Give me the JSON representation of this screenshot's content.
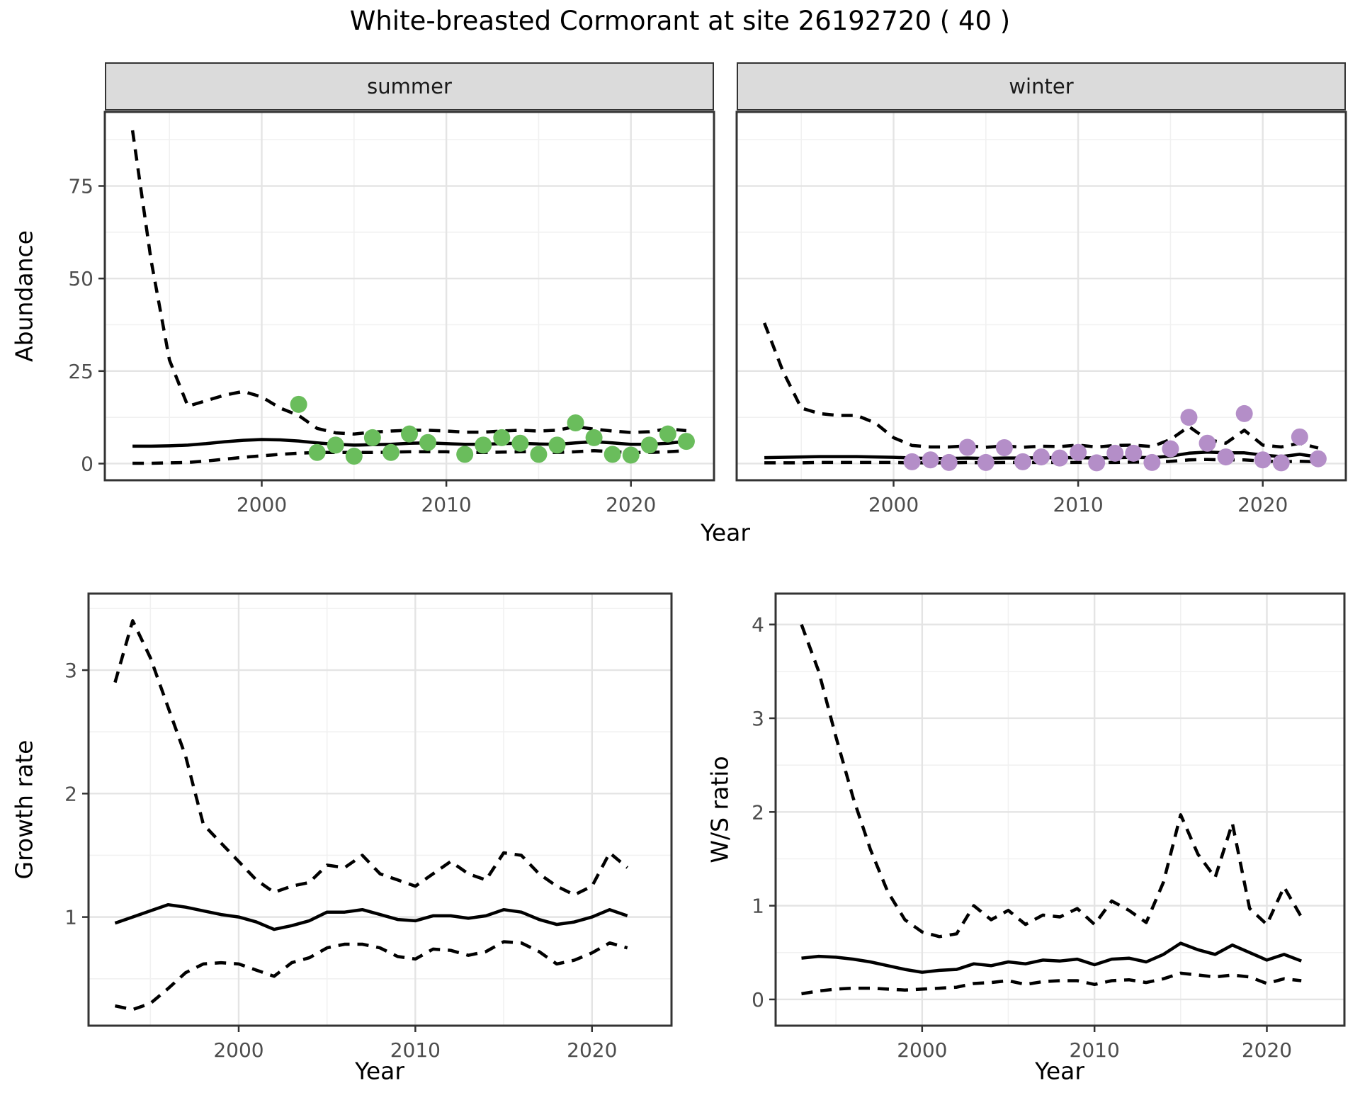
{
  "title": "White-breasted Cormorant at site 26192720 ( 40 )",
  "axes": {
    "abundance": "Abundance",
    "year": "Year",
    "growth_rate": "Growth rate",
    "ws_ratio": "W/S ratio"
  },
  "colors": {
    "summer_points": "#6abd5c",
    "winter_points": "#b48ec8",
    "line": "#000000",
    "grid_major": "#e4e4e4",
    "grid_minor": "#f1f1f1",
    "panel_border": "#333333",
    "strip_bg": "#dbdbdb",
    "tick_text": "#4d4d4d"
  },
  "chart_data": [
    {
      "id": "summer-abundance",
      "type": "line",
      "facet": "summer",
      "xlabel": "Year",
      "ylabel": "Abundance",
      "xlim": [
        1991.5,
        2024.5
      ],
      "ylim": [
        -4.5,
        95
      ],
      "xticks": {
        "major": [
          2000,
          2010,
          2020
        ],
        "minor": [
          1995,
          2005,
          2015
        ]
      },
      "yticks": {
        "major": [
          0,
          25,
          50,
          75
        ],
        "minor": [
          12.5,
          37.5,
          62.5,
          87.5
        ]
      },
      "x": [
        1993,
        1994,
        1995,
        1996,
        1997,
        1998,
        1999,
        2000,
        2001,
        2002,
        2003,
        2004,
        2005,
        2006,
        2007,
        2008,
        2009,
        2010,
        2011,
        2012,
        2013,
        2014,
        2015,
        2016,
        2017,
        2018,
        2019,
        2020,
        2021,
        2022,
        2023
      ],
      "series": [
        {
          "name": "upper_95ci",
          "style": "dashed",
          "values": [
            90,
            55,
            28,
            15.5,
            17,
            18.5,
            19.5,
            18,
            15,
            13,
            9.5,
            8.3,
            8.0,
            8.5,
            8.8,
            9.0,
            9.0,
            8.8,
            8.5,
            8.5,
            8.8,
            9.0,
            8.8,
            9.0,
            10.0,
            9.3,
            8.8,
            8.4,
            8.6,
            9.4,
            8.9
          ]
        },
        {
          "name": "mean",
          "style": "solid",
          "values": [
            4.7,
            4.7,
            4.8,
            5.0,
            5.4,
            5.9,
            6.3,
            6.5,
            6.4,
            6.1,
            5.6,
            5.2,
            5.0,
            5.1,
            5.2,
            5.5,
            5.6,
            5.4,
            5.2,
            5.2,
            5.4,
            5.5,
            5.3,
            5.2,
            5.6,
            5.9,
            5.6,
            5.2,
            5.2,
            5.5,
            6.0
          ]
        },
        {
          "name": "lower_95ci",
          "style": "dashed",
          "values": [
            0.1,
            0.1,
            0.2,
            0.3,
            0.7,
            1.2,
            1.7,
            2.1,
            2.5,
            2.8,
            3.0,
            3.0,
            3.0,
            3.0,
            3.1,
            3.2,
            3.2,
            3.2,
            3.0,
            3.0,
            3.1,
            3.2,
            3.2,
            3.0,
            3.2,
            3.5,
            3.2,
            3.0,
            3.0,
            3.2,
            3.5
          ]
        }
      ],
      "points": {
        "name": "observed-counts-summer",
        "color": "#6abd5c",
        "x": [
          2002,
          2003,
          2004,
          2005,
          2006,
          2007,
          2008,
          2009,
          2011,
          2012,
          2013,
          2014,
          2015,
          2016,
          2017,
          2018,
          2019,
          2020,
          2021,
          2022,
          2023
        ],
        "y": [
          16,
          3,
          5,
          2,
          7,
          3,
          8,
          5.7,
          2.5,
          5,
          7,
          5.5,
          2.5,
          5,
          11,
          7,
          2.5,
          2.3,
          5,
          8,
          6
        ]
      }
    },
    {
      "id": "winter-abundance",
      "type": "line",
      "facet": "winter",
      "xlabel": "Year",
      "ylabel": "Abundance",
      "xlim": [
        1991.5,
        2024.5
      ],
      "ylim": [
        -4.5,
        95
      ],
      "xticks": {
        "major": [
          2000,
          2010,
          2020
        ],
        "minor": [
          1995,
          2005,
          2015
        ]
      },
      "yticks": {
        "major": [
          0,
          25,
          50,
          75
        ],
        "minor": [
          12.5,
          37.5,
          62.5,
          87.5
        ]
      },
      "x": [
        1993,
        1994,
        1995,
        1996,
        1997,
        1998,
        1999,
        2000,
        2001,
        2002,
        2003,
        2004,
        2005,
        2006,
        2007,
        2008,
        2009,
        2010,
        2011,
        2012,
        2013,
        2014,
        2015,
        2016,
        2017,
        2018,
        2019,
        2020,
        2021,
        2022,
        2023
      ],
      "series": [
        {
          "name": "upper_95ci",
          "style": "dashed",
          "values": [
            38,
            25,
            15,
            13.5,
            13,
            13,
            11,
            7,
            4.9,
            4.5,
            4.5,
            4.8,
            4.4,
            4.8,
            4.4,
            4.7,
            4.6,
            5.0,
            4.5,
            4.9,
            5.0,
            4.6,
            6.5,
            10,
            6.5,
            5.5,
            9,
            5.0,
            4.5,
            5.5,
            4.2
          ]
        },
        {
          "name": "mean",
          "style": "solid",
          "values": [
            1.6,
            1.7,
            1.8,
            1.9,
            1.9,
            1.9,
            1.8,
            1.7,
            1.5,
            1.4,
            1.4,
            1.5,
            1.4,
            1.5,
            1.5,
            1.6,
            1.6,
            1.6,
            1.5,
            1.6,
            1.7,
            1.6,
            2.0,
            2.8,
            3.1,
            2.9,
            2.9,
            2.3,
            1.9,
            2.5,
            1.8
          ]
        },
        {
          "name": "lower_95ci",
          "style": "dashed",
          "values": [
            0.2,
            0.2,
            0.2,
            0.3,
            0.3,
            0.3,
            0.3,
            0.3,
            0.2,
            0.2,
            0.2,
            0.3,
            0.2,
            0.3,
            0.3,
            0.3,
            0.3,
            0.3,
            0.3,
            0.3,
            0.4,
            0.4,
            0.6,
            1.0,
            1.1,
            1.0,
            1.0,
            0.7,
            0.5,
            0.6,
            0.5
          ]
        }
      ],
      "points": {
        "name": "observed-counts-winter",
        "color": "#b48ec8",
        "x": [
          2001,
          2002,
          2003,
          2004,
          2005,
          2006,
          2007,
          2008,
          2009,
          2010,
          2011,
          2012,
          2013,
          2014,
          2015,
          2016,
          2017,
          2018,
          2019,
          2020,
          2021,
          2022,
          2023
        ],
        "y": [
          0.5,
          1,
          0.3,
          4.4,
          0.3,
          4.3,
          0.5,
          1.8,
          1.5,
          3,
          0.2,
          2.8,
          2.8,
          0.3,
          4,
          12.5,
          5.5,
          1.8,
          13.5,
          1,
          0.2,
          7.2,
          1.3
        ]
      }
    },
    {
      "id": "growth-rate",
      "type": "line",
      "facet": "",
      "xlabel": "Year",
      "ylabel": "Growth rate",
      "xlim": [
        1991.5,
        2024.5
      ],
      "ylim": [
        0.12,
        3.62
      ],
      "xticks": {
        "major": [
          2000,
          2010,
          2020
        ],
        "minor": [
          1995,
          2005,
          2015
        ]
      },
      "yticks": {
        "major": [
          1,
          2,
          3
        ],
        "minor": [
          0.5,
          1.5,
          2.5,
          3.5
        ]
      },
      "x": [
        1993,
        1994,
        1995,
        1996,
        1997,
        1998,
        1999,
        2000,
        2001,
        2002,
        2003,
        2004,
        2005,
        2006,
        2007,
        2008,
        2009,
        2010,
        2011,
        2012,
        2013,
        2014,
        2015,
        2016,
        2017,
        2018,
        2019,
        2020,
        2021,
        2022
      ],
      "series": [
        {
          "name": "upper_95ci",
          "style": "dashed",
          "values": [
            2.9,
            3.4,
            3.1,
            2.7,
            2.3,
            1.75,
            1.6,
            1.45,
            1.3,
            1.2,
            1.25,
            1.28,
            1.42,
            1.4,
            1.5,
            1.35,
            1.3,
            1.25,
            1.35,
            1.45,
            1.35,
            1.3,
            1.52,
            1.5,
            1.35,
            1.25,
            1.18,
            1.25,
            1.52,
            1.4
          ]
        },
        {
          "name": "mean",
          "style": "solid",
          "values": [
            0.95,
            1.0,
            1.05,
            1.1,
            1.08,
            1.05,
            1.02,
            1.0,
            0.96,
            0.9,
            0.93,
            0.97,
            1.04,
            1.04,
            1.06,
            1.02,
            0.98,
            0.97,
            1.01,
            1.01,
            0.99,
            1.01,
            1.06,
            1.04,
            0.98,
            0.94,
            0.96,
            1.0,
            1.06,
            1.01
          ]
        },
        {
          "name": "lower_95ci",
          "style": "dashed",
          "values": [
            0.28,
            0.25,
            0.3,
            0.42,
            0.55,
            0.62,
            0.63,
            0.62,
            0.57,
            0.52,
            0.63,
            0.67,
            0.75,
            0.78,
            0.78,
            0.75,
            0.68,
            0.66,
            0.74,
            0.73,
            0.69,
            0.72,
            0.8,
            0.79,
            0.72,
            0.62,
            0.65,
            0.71,
            0.79,
            0.75
          ]
        }
      ]
    },
    {
      "id": "ws-ratio",
      "type": "line",
      "facet": "",
      "xlabel": "Year",
      "ylabel": "W/S ratio",
      "xlim": [
        1991.5,
        2024.5
      ],
      "ylim": [
        -0.28,
        4.33
      ],
      "xticks": {
        "major": [
          2000,
          2010,
          2020
        ],
        "minor": [
          1995,
          2005,
          2015
        ]
      },
      "yticks": {
        "major": [
          0,
          1,
          2,
          3,
          4
        ],
        "minor": [
          0.5,
          1.5,
          2.5,
          3.5
        ]
      },
      "x": [
        1993,
        1994,
        1995,
        1996,
        1997,
        1998,
        1999,
        2000,
        2001,
        2002,
        2003,
        2004,
        2005,
        2006,
        2007,
        2008,
        2009,
        2010,
        2011,
        2012,
        2013,
        2014,
        2015,
        2016,
        2017,
        2018,
        2019,
        2020,
        2021,
        2022
      ],
      "series": [
        {
          "name": "upper_95ci",
          "style": "dashed",
          "values": [
            4.0,
            3.5,
            2.8,
            2.15,
            1.6,
            1.15,
            0.85,
            0.72,
            0.67,
            0.7,
            1.0,
            0.85,
            0.95,
            0.8,
            0.9,
            0.88,
            0.97,
            0.8,
            1.05,
            0.95,
            0.82,
            1.25,
            1.97,
            1.55,
            1.3,
            1.88,
            0.97,
            0.8,
            1.2,
            0.88
          ]
        },
        {
          "name": "mean",
          "style": "solid",
          "values": [
            0.44,
            0.46,
            0.45,
            0.43,
            0.4,
            0.36,
            0.32,
            0.29,
            0.31,
            0.32,
            0.38,
            0.36,
            0.4,
            0.38,
            0.42,
            0.41,
            0.43,
            0.37,
            0.43,
            0.44,
            0.4,
            0.48,
            0.6,
            0.53,
            0.48,
            0.58,
            0.5,
            0.42,
            0.48,
            0.41
          ]
        },
        {
          "name": "lower_95ci",
          "style": "dashed",
          "values": [
            0.06,
            0.09,
            0.11,
            0.12,
            0.12,
            0.11,
            0.1,
            0.11,
            0.12,
            0.13,
            0.17,
            0.18,
            0.2,
            0.16,
            0.19,
            0.2,
            0.2,
            0.16,
            0.2,
            0.21,
            0.18,
            0.22,
            0.28,
            0.26,
            0.24,
            0.26,
            0.24,
            0.17,
            0.22,
            0.2
          ]
        }
      ]
    }
  ]
}
